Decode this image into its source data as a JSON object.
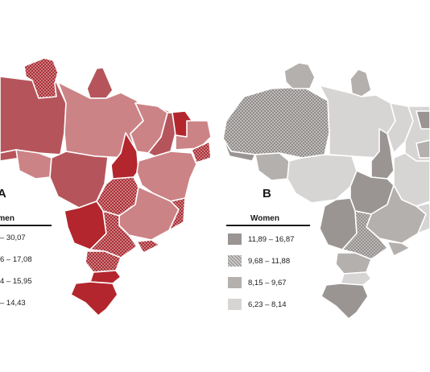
{
  "colors": {
    "dark_red": "#b3262d",
    "mid_red": "#b5555b",
    "light_red": "#cc8386",
    "dark_gray": "#9a9593",
    "mid_gray": "#b3b0ae",
    "light_gray": "#d7d5d4",
    "border": "#ffffff"
  },
  "map_a": {
    "label": "A",
    "legend_title": "Women",
    "legend": [
      {
        "range": "– 30,07",
        "pattern": "dark_red"
      },
      {
        "range": "6 – 17,08",
        "pattern": "crosshatch_red"
      },
      {
        "range": "4 – 15,95",
        "pattern": "mid_red"
      },
      {
        "range": "– 14,43",
        "pattern": "light_red"
      }
    ]
  },
  "map_b": {
    "label": "B",
    "legend_title": "Women",
    "legend": [
      {
        "range": "11,89 – 16,87",
        "pattern": "dark_gray"
      },
      {
        "range": "9,68 – 11,88",
        "pattern": "crosshatch_gray"
      },
      {
        "range": "8,15 – 9,67",
        "pattern": "mid_gray"
      },
      {
        "range": "6,23 – 8,14",
        "pattern": "light_gray"
      }
    ]
  }
}
